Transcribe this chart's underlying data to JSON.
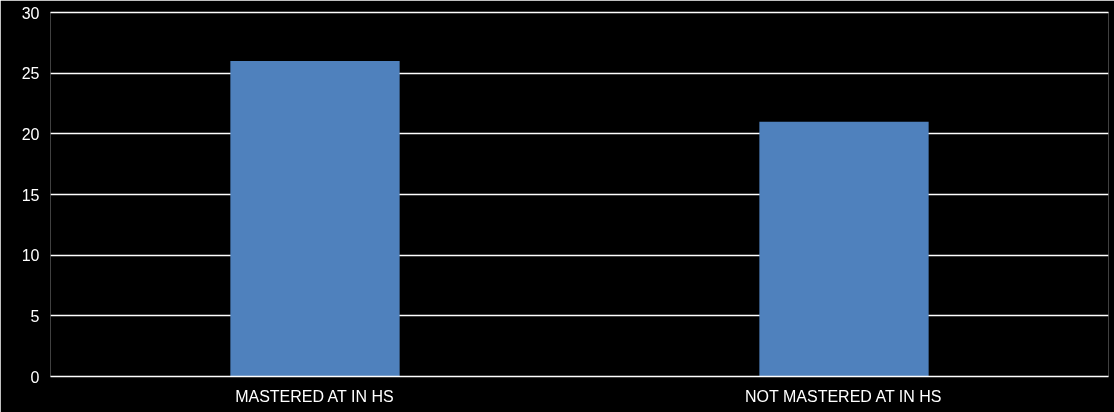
{
  "chart_data": {
    "type": "bar",
    "categories": [
      "MASTERED AT IN HS",
      "NOT MASTERED AT IN HS"
    ],
    "values": [
      26,
      21
    ],
    "color": "#4f81bd",
    "ylim": [
      0,
      30
    ],
    "yticks": [
      0,
      5,
      10,
      15,
      20,
      25,
      30
    ],
    "grid": "y"
  }
}
